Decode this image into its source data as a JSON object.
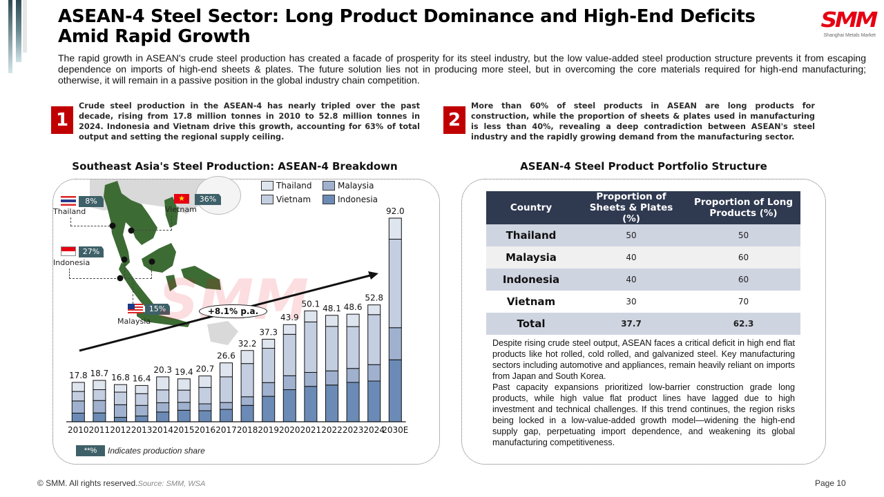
{
  "header": {
    "title": "ASEAN-4 Steel Sector: Long Product Dominance and High-End Deficits Amid Rapid Growth",
    "logo_mark": "SMM",
    "logo_subtitle": "Shanghai Metals Market",
    "intro": "The rapid growth in ASEAN's crude steel production has created a facade of prosperity for its steel industry, but the low value-added steel production structure prevents it from escaping dependence on imports of high-end sheets & plates. The future solution lies not in producing more steel, but in overcoming the core materials required for high-end manufacturing; otherwise, it will remain in a passive position in the global industry chain competition."
  },
  "points": [
    {
      "number": "1",
      "text": "Crude steel production in the ASEAN-4 has nearly tripled over the past decade, rising from 17.8 million tonnes in 2010 to 52.8 million tonnes in 2024. Indonesia and Vietnam drive this growth, accounting for 63% of total output and setting the regional supply ceiling."
    },
    {
      "number": "2",
      "text": "More than 60% of steel products in ASEAN are long products for construction, while the proportion of sheets & plates used in manufacturing is less than 40%, revealing a deep contradiction between ASEAN's steel industry and the rapidly growing demand from the manufacturing sector."
    }
  ],
  "left_section": {
    "title": "Southeast Asia's Steel Production: ASEAN-4 Breakdown",
    "map_labels": [
      {
        "country": "Thailand",
        "share": "8%",
        "flag": "thailand-flag"
      },
      {
        "country": "Vietnam",
        "share": "36%",
        "flag": "vietnam-flag"
      },
      {
        "country": "Indonesia",
        "share": "27%",
        "flag": "indonesia-flag"
      },
      {
        "country": "Malaysia",
        "share": "15%",
        "flag": "malaysia-flag"
      }
    ],
    "cagr_label": "+8.1% p.a.",
    "note_tag": "**%",
    "note_text": "Indicates production share",
    "watermark": "SMM"
  },
  "chart_data": {
    "type": "bar",
    "stacked": true,
    "title": "Southeast Asia's Steel Production: ASEAN-4 Breakdown",
    "xlabel": "",
    "ylabel": "",
    "unit": "million tonnes",
    "categories": [
      "2010",
      "2011",
      "2012",
      "2013",
      "2014",
      "2015",
      "2016",
      "2017",
      "2018",
      "2019",
      "2020",
      "2021",
      "2022",
      "2023",
      "2024",
      "2030E"
    ],
    "totals": [
      17.8,
      18.7,
      16.8,
      16.4,
      20.3,
      19.4,
      20.7,
      26.6,
      32.2,
      37.3,
      43.9,
      50.1,
      48.1,
      48.6,
      52.8,
      92.0
    ],
    "total_labels": [
      "17.8",
      "18.7",
      "16.8",
      "16.4",
      "20.3",
      "19.4",
      "20.7",
      "26.6",
      "32.2",
      "37.3",
      "43.9",
      "50.1",
      "48.1",
      "48.6",
      "52.8",
      "92.0"
    ],
    "series": [
      {
        "name": "Indonesia",
        "color": "#6b8bb6",
        "values": [
          3.9,
          4.0,
          2.0,
          2.6,
          4.4,
          5.2,
          5.0,
          5.6,
          7.4,
          11.5,
          14.5,
          16.0,
          16.6,
          17.8,
          18.4,
          28.0
        ]
      },
      {
        "name": "Malaysia",
        "color": "#9fb1ce",
        "values": [
          5.5,
          5.6,
          5.7,
          4.8,
          4.2,
          3.6,
          3.1,
          3.1,
          3.9,
          6.2,
          6.3,
          6.3,
          6.4,
          6.3,
          7.4,
          14.5
        ]
      },
      {
        "name": "Vietnam",
        "color": "#c4cee1",
        "values": [
          4.3,
          4.9,
          5.7,
          5.3,
          5.8,
          5.5,
          7.4,
          11.6,
          15.0,
          15.5,
          18.7,
          22.8,
          20.1,
          18.9,
          22.6,
          40.0
        ]
      },
      {
        "name": "Thailand",
        "color": "#dfe5ee",
        "values": [
          4.1,
          4.2,
          3.4,
          3.7,
          5.9,
          5.1,
          5.2,
          6.3,
          5.9,
          4.1,
          4.4,
          5.0,
          5.0,
          5.6,
          4.4,
          9.5
        ]
      }
    ],
    "legend": [
      "Thailand",
      "Malaysia",
      "Vietnam",
      "Indonesia"
    ],
    "legend_position": "top-right",
    "ylim": [
      0,
      92
    ],
    "grid": false,
    "annotations": [
      "+8.1% p.a."
    ]
  },
  "right_section": {
    "title": "ASEAN-4 Steel Product Portfolio Structure",
    "table": {
      "headers": [
        "Country",
        "Proportion of Sheets & Plates (%)",
        "Proportion of Long Products (%)"
      ],
      "rows": [
        [
          "Thailand",
          "50",
          "50"
        ],
        [
          "Malaysia",
          "40",
          "60"
        ],
        [
          "Indonesia",
          "40",
          "60"
        ],
        [
          "Vietnam",
          "30",
          "70"
        ],
        [
          "Total",
          "37.7",
          "62.3"
        ]
      ]
    },
    "body_paragraphs": [
      "Despite rising crude steel output, ASEAN faces a critical deficit in high end flat products like hot rolled, cold rolled, and galvanized steel. Key manufacturing sectors including automotive and appliances, remain heavily reliant on imports from Japan and South Korea.",
      "Past capacity expansions prioritized low-barrier construction grade long products, while high value flat product lines have lagged due to high investment and technical challenges. If this trend continues, the region risks being locked in a low-value-added growth model—widening the high-end supply gap, perpetuating import dependence, and weakening its global manufacturing competitiveness."
    ]
  },
  "footer": {
    "copyright": "© SMM. All rights reserved.",
    "source": "Source: SMM, WSA",
    "page": "Page 10"
  }
}
